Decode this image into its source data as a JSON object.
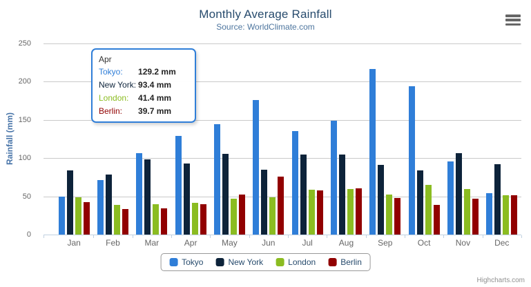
{
  "chart": {
    "title": "Monthly Average Rainfall",
    "subtitle": "Source: WorldClimate.com",
    "y_axis_title": "Rainfall (mm)",
    "credits": "Highcharts.com"
  },
  "chart_data": {
    "type": "bar",
    "title": "Monthly Average Rainfall",
    "subtitle": "Source: WorldClimate.com",
    "xlabel": "",
    "ylabel": "Rainfall (mm)",
    "ylim": [
      0,
      250
    ],
    "y_ticks": [
      0,
      50,
      100,
      150,
      200,
      250
    ],
    "grid": true,
    "legend_position": "bottom",
    "categories": [
      "Jan",
      "Feb",
      "Mar",
      "Apr",
      "May",
      "Jun",
      "Jul",
      "Aug",
      "Sep",
      "Oct",
      "Nov",
      "Dec"
    ],
    "series": [
      {
        "name": "Tokyo",
        "color": "#2f7ed8",
        "values": [
          49.9,
          71.5,
          106.4,
          129.2,
          144.0,
          176.0,
          135.6,
          148.5,
          216.4,
          194.1,
          95.6,
          54.4
        ]
      },
      {
        "name": "New York",
        "color": "#0d233a",
        "values": [
          83.6,
          78.8,
          98.5,
          93.4,
          106.0,
          84.5,
          105.0,
          104.3,
          91.2,
          83.5,
          106.6,
          92.3
        ]
      },
      {
        "name": "London",
        "color": "#8bbc21",
        "values": [
          48.9,
          38.8,
          39.3,
          41.4,
          47.0,
          48.3,
          59.0,
          59.6,
          52.4,
          65.2,
          59.3,
          51.2
        ]
      },
      {
        "name": "Berlin",
        "color": "#910000",
        "values": [
          42.4,
          33.2,
          34.5,
          39.7,
          52.6,
          75.5,
          57.4,
          60.4,
          47.6,
          39.1,
          46.8,
          51.1
        ]
      }
    ]
  },
  "tooltip": {
    "header": "Apr",
    "border_color": "#2f7ed8",
    "rows": [
      {
        "label": "Tokyo:",
        "value": "129.2 mm",
        "color": "#2f7ed8"
      },
      {
        "label": "New York:",
        "value": "93.4 mm",
        "color": "#0d233a"
      },
      {
        "label": "London:",
        "value": "41.4 mm",
        "color": "#8bbc21"
      },
      {
        "label": "Berlin:",
        "value": "39.7 mm",
        "color": "#910000"
      }
    ]
  },
  "legend": {
    "items": [
      {
        "label": "Tokyo",
        "color": "#2f7ed8"
      },
      {
        "label": "New York",
        "color": "#0d233a"
      },
      {
        "label": "London",
        "color": "#8bbc21"
      },
      {
        "label": "Berlin",
        "color": "#910000"
      }
    ]
  }
}
